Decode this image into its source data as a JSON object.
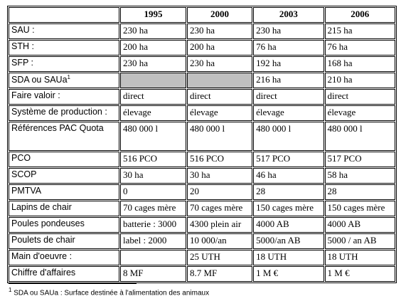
{
  "table": {
    "header": [
      "1995",
      "2000",
      "2003",
      "2006"
    ],
    "rows": [
      {
        "label": "SAU :",
        "values": [
          "230 ha",
          "230 ha",
          "230 ha",
          "215 ha"
        ]
      },
      {
        "label": "STH :",
        "values": [
          "200 ha",
          "200 ha",
          "76 ha",
          "76 ha"
        ]
      },
      {
        "label": "SFP :",
        "values": [
          "230 ha",
          "230 ha",
          "192 ha",
          "168 ha"
        ]
      },
      {
        "label": "SDA ou SAUa",
        "sup": "1",
        "values": [
          null,
          null,
          "216 ha",
          "210 ha"
        ]
      },
      {
        "label": "Faire valoir :",
        "values": [
          "direct",
          "direct",
          "direct",
          "direct"
        ]
      },
      {
        "label": "Système de production :",
        "values": [
          "élevage",
          "élevage",
          "élevage",
          "élevage"
        ]
      },
      {
        "label": "Références PAC Quota",
        "values": [
          "480 000 l",
          "480 000 l",
          "480 000 l",
          "480 000 l"
        ]
      },
      {
        "label": "PCO",
        "values": [
          "516 PCO",
          "516 PCO",
          "517 PCO",
          "517 PCO"
        ]
      },
      {
        "label": "SCOP",
        "values": [
          "30 ha",
          "30 ha",
          "46 ha",
          "58 ha"
        ]
      },
      {
        "label": "PMTVA",
        "values": [
          "0",
          "20",
          "28",
          "28"
        ]
      },
      {
        "label": "Lapins de chair",
        "values": [
          "70 cages mère",
          "70 cages mère",
          "150 cages mère",
          "150 cages mère"
        ]
      },
      {
        "label": "Poules pondeuses",
        "values": [
          "batterie : 3000",
          "4300 plein air",
          "4000 AB",
          "4000 AB"
        ]
      },
      {
        "label": "Poulets de chair",
        "values": [
          "label : 2000",
          "10 000/an",
          "5000/an AB",
          "5000 / an AB"
        ]
      },
      {
        "label": "Main d'oeuvre :",
        "values": [
          null,
          "25 UTH",
          "18 UTH",
          "18 UTH"
        ]
      },
      {
        "label": "Chiffre d'affaires",
        "values": [
          "8 MF",
          "8.7 MF",
          "1 M €",
          "1 M €"
        ]
      }
    ]
  },
  "footnote": {
    "marker": "1",
    "text": "SDA ou SAUa : Surface destinée à l'alimentation des animaux"
  }
}
